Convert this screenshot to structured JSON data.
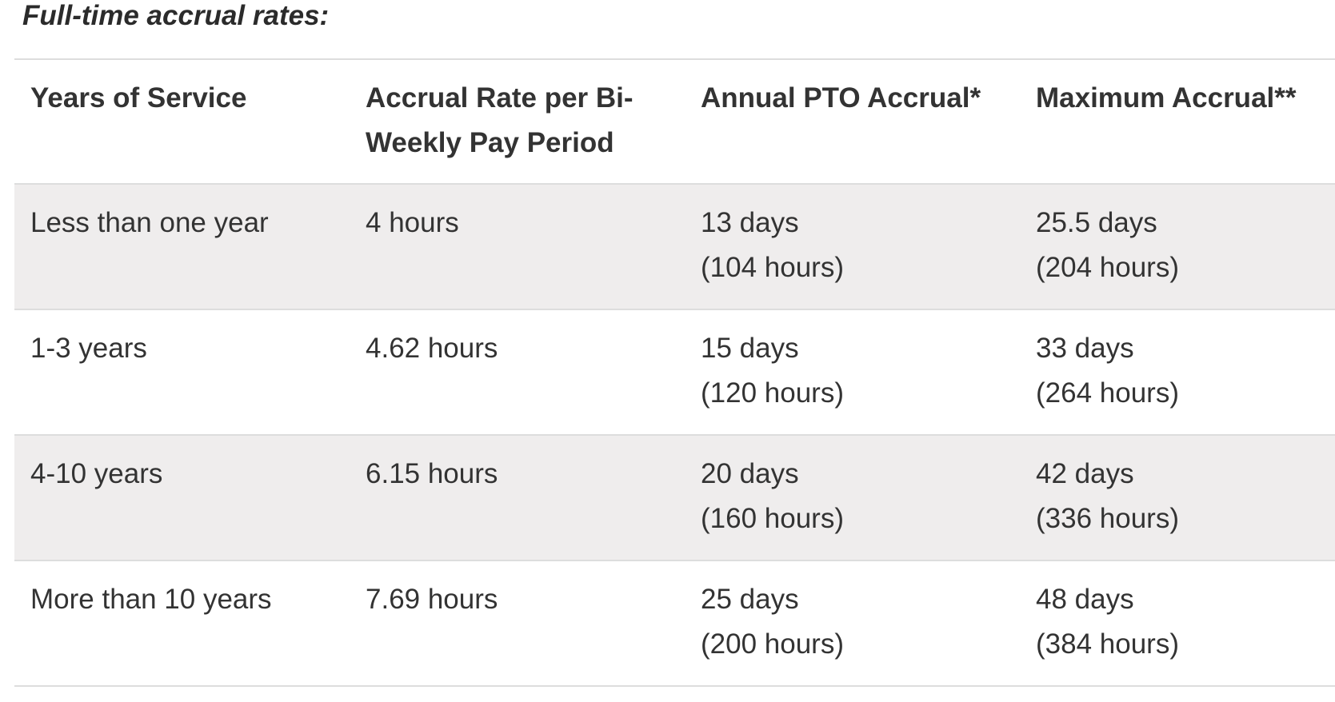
{
  "title": "Full-time accrual rates:",
  "table": {
    "headers": [
      "Years of Service",
      "Accrual Rate per Bi-Weekly Pay Period",
      "Annual PTO Accrual*",
      "Maximum Accrual**"
    ],
    "rows": [
      [
        [
          "Less than one year"
        ],
        [
          "4 hours"
        ],
        [
          "13 days",
          "(104 hours)"
        ],
        [
          "25.5 days",
          "(204 hours)"
        ]
      ],
      [
        [
          "1-3 years"
        ],
        [
          "4.62 hours"
        ],
        [
          "15 days",
          "(120 hours)"
        ],
        [
          "33 days",
          "(264 hours)"
        ]
      ],
      [
        [
          "4-10 years"
        ],
        [
          "6.15 hours"
        ],
        [
          "20 days",
          "(160 hours)"
        ],
        [
          "42 days",
          "(336 hours)"
        ]
      ],
      [
        [
          "More than 10 years"
        ],
        [
          "7.69 hours"
        ],
        [
          "25 days",
          "(200 hours)"
        ],
        [
          "48 days",
          "(384 hours)"
        ]
      ]
    ]
  }
}
